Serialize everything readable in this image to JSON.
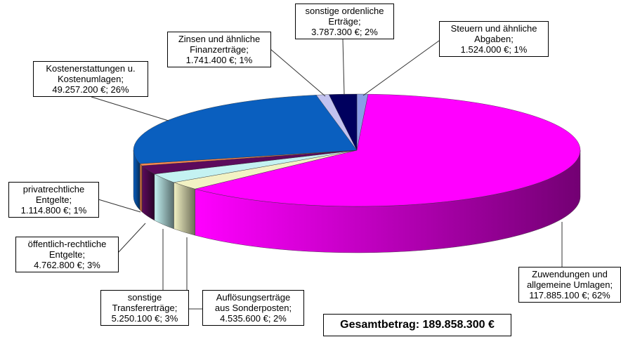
{
  "chart_data": {
    "type": "pie",
    "style": "3d",
    "categories": [
      "Steuern und ähnliche\nAbgaben;",
      "Zuwendungen und\nallgemeine Umlagen;",
      "Auflösungserträge\naus Sonderposten;",
      "sonstige\nTransfererträge;",
      "öffentlich-rechtliche\nEntgelte;",
      "privatrechtliche\nEntgelte;",
      "Kostenerstattungen u.\nKostenumlagen;",
      "Zinsen und ähnliche\nFinanzerträge;",
      "sonstige ordenliche\nErträge;"
    ],
    "values": [
      1524000,
      117885100,
      4535600,
      5250100,
      4762800,
      1114800,
      49257200,
      1741400,
      3787300
    ],
    "value_labels": [
      "1.524.000 €; 1%",
      "117.885.100 €; 62%",
      "4.535.600 €; 2%",
      "5.250.100 €; 3%",
      "4.762.800 €; 3%",
      "1.114.800 €; 1%",
      "49.257.200 €; 26%",
      "1.741.400 €; 1%",
      "3.787.300 €; 2%"
    ],
    "colors": [
      "#8a9ce6",
      "#ff00ff",
      "#f2f2c4",
      "#c4f2f2",
      "#5c0a5c",
      "#ff8a50",
      "#0a5fbf",
      "#c2c2f0",
      "#00005e"
    ],
    "note": "Gesamtbetrag: 189.858.300 €"
  }
}
